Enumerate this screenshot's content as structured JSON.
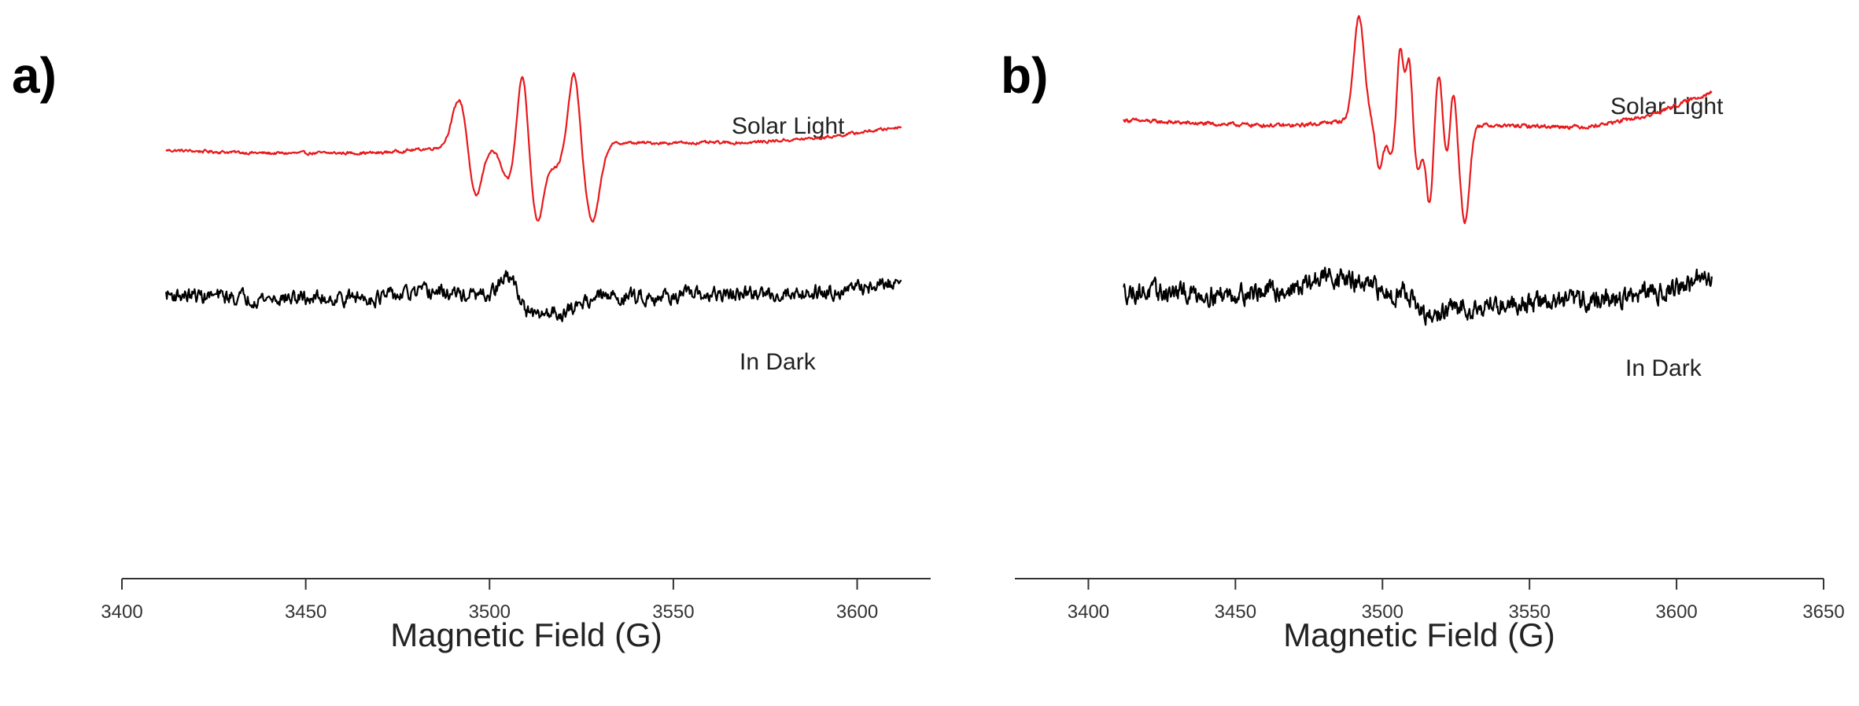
{
  "chart_data": [
    {
      "type": "line",
      "panel_label": "a)",
      "xlabel": "Magnetic Field (G)",
      "ylabel": "",
      "xlim": [
        3400,
        3620
      ],
      "xticks": [
        3400,
        3450,
        3500,
        3550,
        3600
      ],
      "x_range": [
        3412,
        3612
      ],
      "series": [
        {
          "name": "Solar Light",
          "color": "#e8191c",
          "baseline": [
            [
              3412,
              0.15
            ],
            [
              3440,
              0.0
            ],
            [
              3470,
              0.02
            ],
            [
              3485,
              0.25
            ],
            [
              3500,
              0.25
            ],
            [
              3530,
              0.5
            ],
            [
              3570,
              0.52
            ],
            [
              3590,
              0.75
            ],
            [
              3612,
              1.3
            ]
          ],
          "features": [
            [
              3492,
              2.5,
              3
            ],
            [
              3496,
              -2.7,
              2.5
            ],
            [
              3505,
              -1.6,
              2.5
            ],
            [
              3509,
              3.8,
              2
            ],
            [
              3513,
              -3.7,
              2.5
            ],
            [
              3518,
              -1.0,
              2.5
            ],
            [
              3523,
              3.6,
              2
            ],
            [
              3528,
              -3.8,
              2.8
            ]
          ],
          "noise": 0.06
        },
        {
          "name": "In Dark",
          "color": "#000000",
          "baseline": [
            [
              3412,
              0.3
            ],
            [
              3440,
              0.1
            ],
            [
              3470,
              0.15
            ],
            [
              3485,
              0.45
            ],
            [
              3500,
              0.15
            ],
            [
              3540,
              0.2
            ],
            [
              3580,
              0.35
            ],
            [
              3600,
              0.6
            ],
            [
              3612,
              1.0
            ]
          ],
          "features": [
            [
              3505,
              1.1,
              3.5
            ],
            [
              3512,
              -1.0,
              4
            ],
            [
              3520,
              -0.8,
              5
            ]
          ],
          "noise": 0.32
        }
      ]
    },
    {
      "type": "line",
      "panel_label": "b)",
      "xlabel": "Magnetic Field (G)",
      "ylabel": "",
      "xlim": [
        3375,
        3650
      ],
      "xticks": [
        3400,
        3450,
        3500,
        3550,
        3600,
        3650
      ],
      "x_range": [
        3412,
        3612
      ],
      "series": [
        {
          "name": "Solar Light",
          "color": "#e8191c",
          "baseline": [
            [
              3412,
              0.3
            ],
            [
              3440,
              0.1
            ],
            [
              3470,
              0.0
            ],
            [
              3490,
              0.3
            ],
            [
              3540,
              0.0
            ],
            [
              3570,
              -0.05
            ],
            [
              3590,
              0.5
            ],
            [
              3612,
              1.8
            ]
          ],
          "features": [
            [
              3492,
              5.5,
              2.5
            ],
            [
              3499,
              -2.5,
              1.8
            ],
            [
              3503,
              -1.8,
              2
            ],
            [
              3506,
              4.0,
              1.5
            ],
            [
              3509,
              3.4,
              1.5
            ],
            [
              3512,
              -2.5,
              1.8
            ],
            [
              3516,
              -4.3,
              1.8
            ],
            [
              3519,
              2.8,
              1.6
            ],
            [
              3522,
              -1.8,
              1.6
            ],
            [
              3524,
              2.0,
              1.5
            ],
            [
              3528,
              -5.2,
              2.2
            ]
          ],
          "noise": 0.08
        },
        {
          "name": "In Dark",
          "color": "#000000",
          "baseline": [
            [
              3412,
              0.3
            ],
            [
              3445,
              0.15
            ],
            [
              3470,
              0.4
            ],
            [
              3482,
              1.2
            ],
            [
              3500,
              0.3
            ],
            [
              3520,
              -0.7
            ],
            [
              3545,
              -0.3
            ],
            [
              3580,
              -0.1
            ],
            [
              3600,
              0.5
            ],
            [
              3612,
              1.1
            ]
          ],
          "features": [
            [
              3508,
              0.5,
              3
            ],
            [
              3515,
              -0.7,
              4
            ]
          ],
          "noise": 0.42
        }
      ]
    }
  ]
}
